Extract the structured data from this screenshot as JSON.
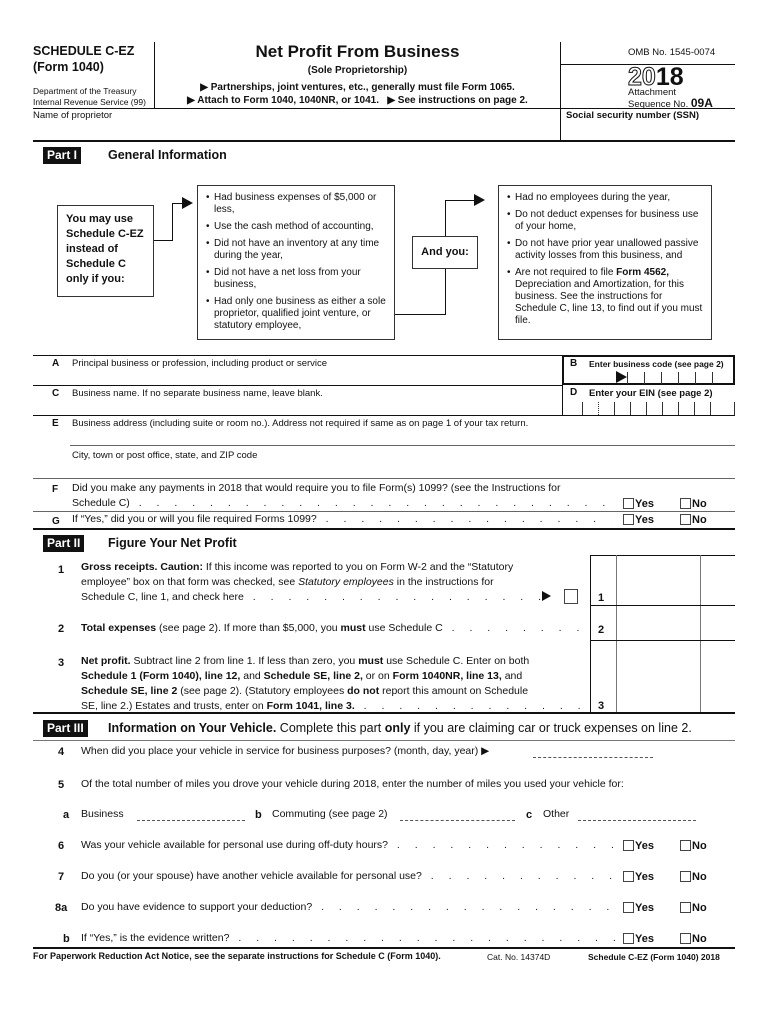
{
  "header": {
    "schedule": "SCHEDULE C-EZ",
    "form": "(Form 1040)",
    "dept": "Department of the Treasury",
    "irs": "Internal Revenue Service (99)",
    "title": "Net Profit From Business",
    "subtitle": "(Sole Proprietorship)",
    "note1": "▶ Partnerships, joint ventures, etc., generally must file Form 1065.",
    "note2": "▶ Attach to Form 1040, 1040NR, or 1041.   ▶ See instructions on page 2.",
    "omb": "OMB No. 1545-0074",
    "year_outline": "20",
    "year_bold": "18",
    "attachment": "Attachment",
    "sequence": "Sequence No.",
    "sequence_no": "09A",
    "name_label": "Name of proprietor",
    "ssn_label": "Social security number (SSN)"
  },
  "part1": {
    "badge": "Part I",
    "title": "General Information",
    "may_use": "You may use Schedule C-EZ instead of Schedule C only if you:",
    "left_bullets": [
      "Had business expenses of $5,000 or less,",
      "Use the cash method of accounting,",
      "Did not have an inventory at any time during the year,",
      "Did not have a net loss from your business,",
      "Had only one business as either a sole proprietor, qualified joint venture, or statutory employee,"
    ],
    "and_you": "And you:",
    "right_bullets": [
      "Had no employees during the year,",
      "Do not deduct expenses for business use of your home,",
      "Do not have prior year unallowed passive activity losses from this business, and"
    ],
    "right_last_pre": "Are not required to file ",
    "right_last_bold": "Form 4562,",
    "right_last_post": " Depreciation and Amortization, for this business. See the instructions for Schedule C, line 13, to find out if you must file.",
    "A": {
      "letter": "A",
      "label": "Principal business or profession, including product or service"
    },
    "B": {
      "letter": "B",
      "label": "Enter business code (see page 2)"
    },
    "C": {
      "letter": "C",
      "label": "Business name. If no separate business name, leave blank."
    },
    "D": {
      "letter": "D",
      "label": "Enter your EIN (see page 2)"
    },
    "E": {
      "letter": "E",
      "label": "Business address (including suite or room no.). Address not required if same as on page 1 of your tax return.",
      "city": "City, town or post office, state, and ZIP code"
    },
    "F": {
      "letter": "F",
      "label1": "Did you make any payments in 2018 that would require you to file Form(s) 1099? (see the Instructions for",
      "label2": "Schedule C)"
    },
    "G": {
      "letter": "G",
      "label": "If “Yes,” did you or will you file required Forms 1099?"
    },
    "yes": "Yes",
    "no": "No"
  },
  "part2": {
    "badge": "Part II",
    "title": "Figure Your Net Profit",
    "l1": {
      "num": "1",
      "bold": "Gross receipts. Caution:",
      "t1": " If this income was reported to you on Form W-2 and the “Statutory",
      "t2": "employee” box on that form was checked, see ",
      "italic": "Statutory employees",
      "t3": " in the instructions for",
      "t4": "Schedule C, line 1, and check here"
    },
    "l2": {
      "num": "2",
      "bold": "Total expenses",
      "t1": " (see page 2). If more than $5,000, you ",
      "bold2": "must",
      "t2": " use Schedule C"
    },
    "l3": {
      "num": "3",
      "segments": [
        [
          {
            "b": 1,
            "t": "Net profit."
          },
          {
            "t": " Subtract line 2 from line 1. If less than zero, you "
          },
          {
            "b": 1,
            "t": "must"
          },
          {
            "t": " use Schedule C. Enter on both"
          }
        ],
        [
          {
            "b": 1,
            "t": "Schedule 1 (Form 1040), line 12,"
          },
          {
            "t": " and "
          },
          {
            "b": 1,
            "t": "Schedule SE, line 2,"
          },
          {
            "t": " or on "
          },
          {
            "b": 1,
            "t": "Form 1040NR, line 13,"
          },
          {
            "t": " and"
          }
        ],
        [
          {
            "b": 1,
            "t": "Schedule SE, line 2"
          },
          {
            "t": " (see page 2). (Statutory employees "
          },
          {
            "b": 1,
            "t": "do not"
          },
          {
            "t": " report this amount on Schedule"
          }
        ],
        [
          {
            "t": "SE, line 2.) Estates and trusts, enter on "
          },
          {
            "b": 1,
            "t": "Form 1041, line 3."
          }
        ]
      ]
    }
  },
  "part3": {
    "badge": "Part III",
    "title_bold": "Information on Your Vehicle.",
    "title_pre": " Complete this part ",
    "title_only": "only",
    "title_post": " if you are claiming car or truck expenses on line 2.",
    "l4": {
      "num": "4",
      "text": "When did you place your vehicle in service for business purposes? (month, day, year) ▶"
    },
    "l5": {
      "num": "5",
      "text": "Of the total number of miles you drove your vehicle during 2018, enter the number of miles you used your vehicle for:"
    },
    "l5a": {
      "a": "a",
      "a_label": "Business",
      "b": "b",
      "b_label": "Commuting (see page 2)",
      "c": "c",
      "c_label": "Other"
    },
    "l6": {
      "num": "6",
      "text": "Was your vehicle available for personal use during off-duty hours?"
    },
    "l7": {
      "num": "7",
      "text": "Do you (or your spouse) have another vehicle available for personal use?"
    },
    "l8a": {
      "num": "8a",
      "text": "Do you have evidence to support your deduction?"
    },
    "l8b": {
      "num": "b",
      "text": "If “Yes,” is the evidence written?"
    }
  },
  "footer": {
    "paperwork": "For Paperwork Reduction Act Notice, see the separate instructions for Schedule C (Form 1040).",
    "cat": "Cat. No. 14374D",
    "form": "Schedule C-EZ (Form 1040) 2018"
  }
}
